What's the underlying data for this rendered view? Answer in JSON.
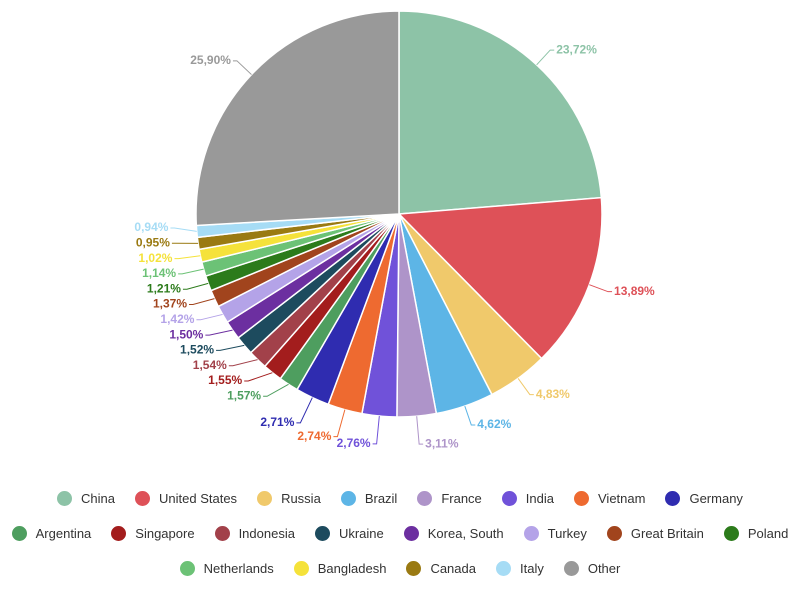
{
  "chart_data": {
    "type": "pie",
    "categories": [
      "China",
      "United States",
      "Russia",
      "Brazil",
      "France",
      "India",
      "Vietnam",
      "Germany",
      "Argentina",
      "Singapore",
      "Indonesia",
      "Ukraine",
      "Korea, South",
      "Turkey",
      "Great Britain",
      "Poland",
      "Netherlands",
      "Bangladesh",
      "Canada",
      "Italy",
      "Other"
    ],
    "values": [
      23.72,
      13.89,
      4.83,
      4.62,
      3.11,
      2.76,
      2.74,
      2.71,
      1.57,
      1.55,
      1.54,
      1.52,
      1.5,
      1.42,
      1.37,
      1.21,
      1.14,
      1.02,
      0.95,
      0.94,
      25.9
    ],
    "value_labels": [
      "23,72%",
      "13,89%",
      "4,83%",
      "4,62%",
      "3,11%",
      "2,76%",
      "2,74%",
      "2,71%",
      "1,57%",
      "1,55%",
      "1,54%",
      "1,52%",
      "1,50%",
      "1,42%",
      "1,37%",
      "1,21%",
      "1,14%",
      "1,02%",
      "0,95%",
      "0,94%",
      "25,90%"
    ],
    "colors": [
      "#8dc3a7",
      "#de5158",
      "#f0c96b",
      "#5db5e6",
      "#ae94c9",
      "#7052d9",
      "#ee6a30",
      "#2f2cb0",
      "#4e9e5f",
      "#a31d1d",
      "#a2414a",
      "#1d4b5e",
      "#6c2fa0",
      "#b4a3e8",
      "#a1441d",
      "#2c7b1b",
      "#6cc276",
      "#f5e23a",
      "#9a7a12",
      "#a6dcf5",
      "#999999"
    ]
  }
}
